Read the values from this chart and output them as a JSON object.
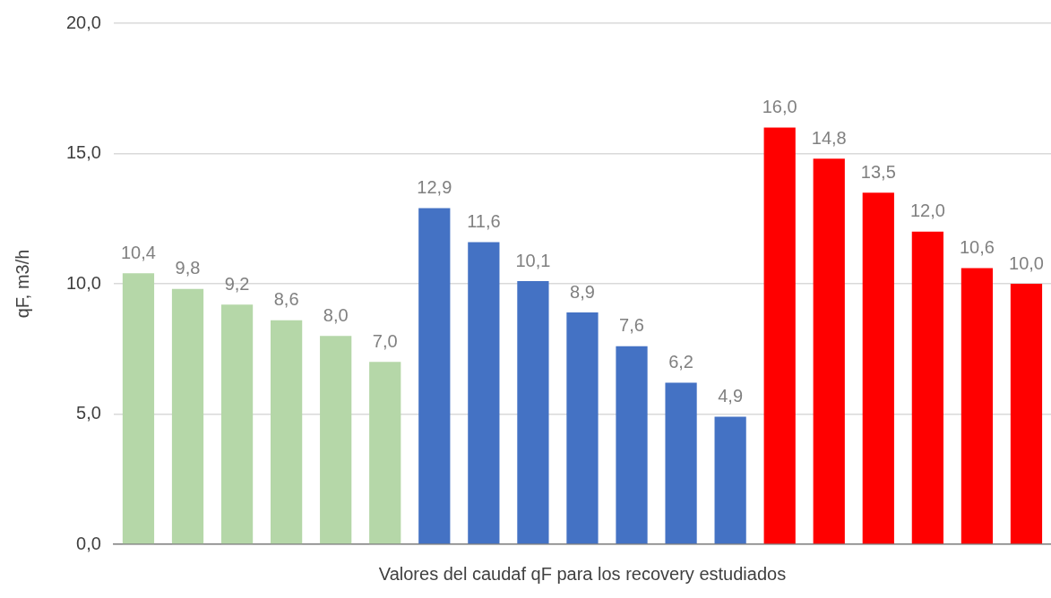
{
  "chart_data": {
    "type": "bar",
    "xlabel": "Valores del caudaf qF para los recovery estudiados",
    "ylabel": "qF, m3/h",
    "categories": [
      null,
      null,
      null,
      null,
      null,
      null,
      null,
      null,
      null,
      null,
      null,
      null,
      null,
      null,
      null,
      null,
      null,
      null,
      null
    ],
    "values": [
      10.4,
      9.8,
      9.2,
      8.6,
      8.0,
      7.0,
      12.9,
      11.6,
      10.1,
      8.9,
      7.6,
      6.2,
      4.9,
      16.0,
      14.8,
      13.5,
      12.0,
      10.6,
      10.0
    ],
    "colors": [
      "#b5d7a8",
      "#b5d7a8",
      "#b5d7a8",
      "#b5d7a8",
      "#b5d7a8",
      "#b5d7a8",
      "#4472c4",
      "#4472c4",
      "#4472c4",
      "#4472c4",
      "#4472c4",
      "#4472c4",
      "#4472c4",
      "#ff0000",
      "#ff0000",
      "#ff0000",
      "#ff0000",
      "#ff0000",
      "#ff0000"
    ],
    "value_labels": [
      "10,4",
      "9,8",
      "9,2",
      "8,6",
      "8,0",
      "7,0",
      "12,9",
      "11,6",
      "10,1",
      "8,9",
      "7,6",
      "6,2",
      "4,9",
      "16,0",
      "14,8",
      "13,5",
      "12,0",
      "10,6",
      "10,0"
    ],
    "ylim": [
      0,
      20
    ],
    "yticks": [
      {
        "value": 0,
        "label": "0,0"
      },
      {
        "value": 5,
        "label": "5,0"
      },
      {
        "value": 10,
        "label": "10,0"
      },
      {
        "value": 15,
        "label": "15,0"
      },
      {
        "value": 20,
        "label": "20,0"
      }
    ],
    "grid": "y"
  }
}
